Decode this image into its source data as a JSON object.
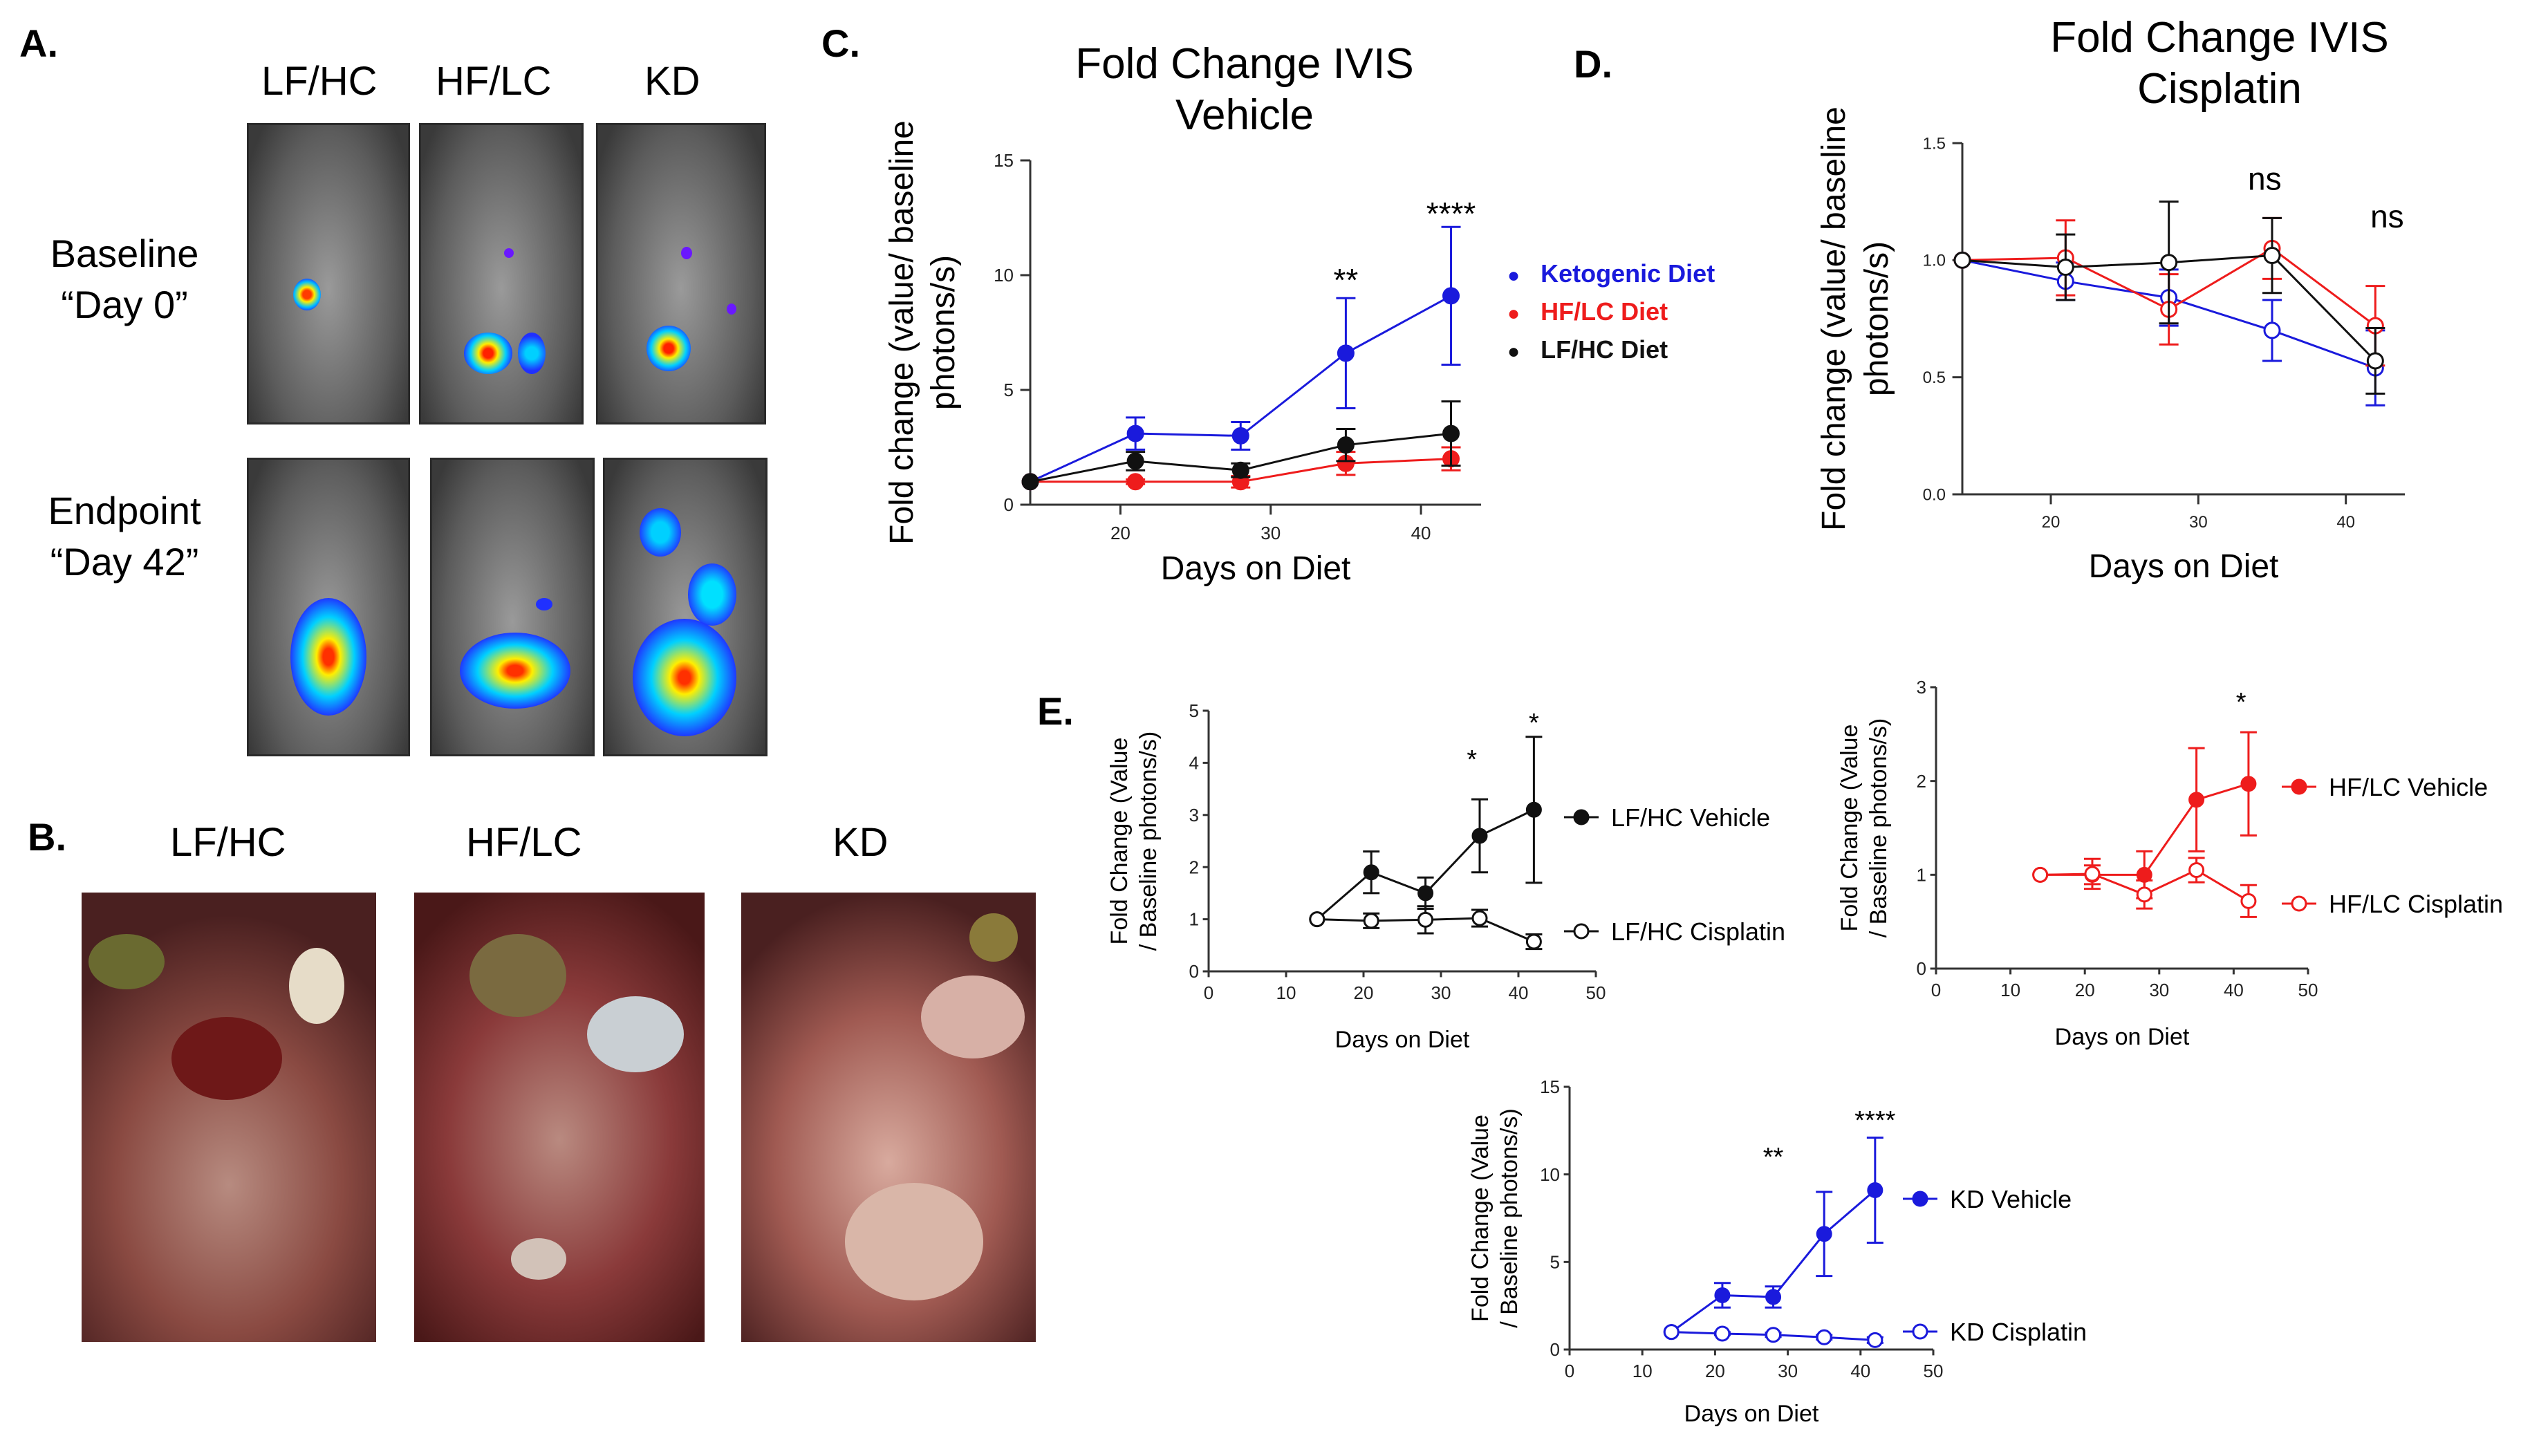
{
  "panels": {
    "a": {
      "label": "A.",
      "columns": [
        "LF/HC",
        "HF/LC",
        "KD"
      ],
      "rows": [
        [
          "Baseline",
          "“Day 0”"
        ],
        [
          "Endpoint",
          "“Day 42”"
        ]
      ]
    },
    "b": {
      "label": "B.",
      "columns": [
        "LF/HC",
        "HF/LC",
        "KD"
      ]
    },
    "c": {
      "label": "C."
    },
    "d": {
      "label": "D."
    },
    "e": {
      "label": "E."
    }
  },
  "colors": {
    "kd": "#1a1adc",
    "hflc": "#ee1c1c",
    "lfhc": "#111111",
    "axis": "#333333"
  },
  "chart_data": [
    {
      "id": "c",
      "type": "line",
      "title_lines": [
        "Fold Change IVIS",
        "Vehicle"
      ],
      "xlabel": "Days on Diet",
      "ylabel_lines": [
        "Fold change (value/ baseline",
        "photons/s)"
      ],
      "xlim": [
        14,
        44
      ],
      "ylim": [
        0,
        15
      ],
      "xticks": [
        20,
        30,
        40
      ],
      "yticks": [
        0,
        5,
        10,
        15
      ],
      "legend": "right",
      "series": [
        {
          "name": "Ketogenic Diet",
          "color": "#1a1adc",
          "x": [
            14,
            21,
            28,
            35,
            42
          ],
          "y": [
            1.0,
            3.1,
            3.0,
            6.6,
            9.1
          ],
          "err": [
            0,
            0.7,
            0.6,
            2.4,
            3.0
          ],
          "marker": "filled"
        },
        {
          "name": "HF/LC Diet",
          "color": "#ee1c1c",
          "x": [
            14,
            21,
            28,
            35,
            42
          ],
          "y": [
            1.0,
            1.0,
            1.0,
            1.8,
            2.0
          ],
          "err": [
            0,
            0.1,
            0.25,
            0.5,
            0.5
          ],
          "marker": "filled"
        },
        {
          "name": "LF/HC Diet",
          "color": "#111111",
          "x": [
            14,
            21,
            28,
            35,
            42
          ],
          "y": [
            1.0,
            1.9,
            1.5,
            2.6,
            3.1
          ],
          "err": [
            0,
            0.4,
            0.3,
            0.7,
            1.4
          ],
          "marker": "filled"
        }
      ],
      "annotations": [
        {
          "text": "**",
          "x": 35,
          "y": 9.3
        },
        {
          "text": "****",
          "x": 42,
          "y": 12.2
        }
      ]
    },
    {
      "id": "d",
      "type": "line",
      "title_lines": [
        "Fold Change IVIS",
        "Cisplatin"
      ],
      "xlabel": "Days on Diet",
      "ylabel_lines": [
        "Fold change (value/ baseline",
        "photons/s)"
      ],
      "xlim": [
        14,
        44
      ],
      "ylim": [
        0,
        1.5
      ],
      "xticks": [
        20,
        30,
        40
      ],
      "yticks": [
        0.0,
        0.5,
        1.0,
        1.5
      ],
      "ytick_labels": [
        "0.0",
        "0.5",
        "1.0",
        "1.5"
      ],
      "series": [
        {
          "name": "Ketogenic Diet",
          "color": "#1a1adc",
          "x": [
            14,
            21,
            28,
            35,
            42
          ],
          "y": [
            1.0,
            0.91,
            0.84,
            0.7,
            0.54
          ],
          "err": [
            0,
            0.08,
            0.12,
            0.13,
            0.16
          ],
          "marker": "open"
        },
        {
          "name": "HF/LC Diet",
          "color": "#ee1c1c",
          "x": [
            14,
            21,
            28,
            35,
            42
          ],
          "y": [
            1.0,
            1.01,
            0.79,
            1.05,
            0.72
          ],
          "err": [
            0,
            0.16,
            0.15,
            0.13,
            0.17
          ],
          "marker": "open"
        },
        {
          "name": "LF/HC Diet",
          "color": "#111111",
          "x": [
            14,
            21,
            28,
            35,
            42
          ],
          "y": [
            1.0,
            0.97,
            0.99,
            1.02,
            0.57
          ],
          "err": [
            0,
            0.14,
            0.26,
            0.16,
            0.14
          ],
          "marker": "open"
        }
      ],
      "annotations": [
        {
          "text": "ns",
          "x": 34.5,
          "y": 1.3
        },
        {
          "text": "ns",
          "x": 42.8,
          "y": 1.14
        }
      ]
    },
    {
      "id": "e1",
      "type": "line",
      "xlabel": "Days on Diet",
      "ylabel_lines": [
        "Fold Change (Value",
        "/ Baseline photons/s)"
      ],
      "xlim": [
        0,
        50
      ],
      "ylim": [
        0,
        5
      ],
      "xticks": [
        0,
        10,
        20,
        30,
        40,
        50
      ],
      "yticks": [
        0,
        1,
        2,
        3,
        4,
        5
      ],
      "series": [
        {
          "name": "LF/HC Vehicle",
          "color": "#111111",
          "x": [
            14,
            21,
            28,
            35,
            42
          ],
          "y": [
            1.0,
            1.9,
            1.5,
            2.6,
            3.1
          ],
          "err": [
            0,
            0.4,
            0.3,
            0.7,
            1.4
          ],
          "marker": "filled"
        },
        {
          "name": "LF/HC Cisplatin",
          "color": "#111111",
          "x": [
            14,
            21,
            28,
            35,
            42
          ],
          "y": [
            1.0,
            0.97,
            0.99,
            1.02,
            0.57
          ],
          "err": [
            0,
            0.14,
            0.26,
            0.16,
            0.14
          ],
          "marker": "open"
        }
      ],
      "annotations": [
        {
          "text": "*",
          "x": 34,
          "y": 3.9
        },
        {
          "text": "*",
          "x": 42,
          "y": 4.6
        }
      ]
    },
    {
      "id": "e2",
      "type": "line",
      "xlabel": "Days on Diet",
      "ylabel_lines": [
        "Fold Change (Value",
        "/ Baseline photons/s)"
      ],
      "xlim": [
        0,
        50
      ],
      "ylim": [
        0,
        3
      ],
      "xticks": [
        0,
        10,
        20,
        30,
        40,
        50
      ],
      "yticks": [
        0,
        1,
        2,
        3
      ],
      "series": [
        {
          "name": "HF/LC Vehicle",
          "color": "#ee1c1c",
          "x": [
            14,
            21,
            28,
            35,
            42
          ],
          "y": [
            1.0,
            1.0,
            1.0,
            1.8,
            1.97
          ],
          "err": [
            0,
            0.1,
            0.25,
            0.55,
            0.55
          ],
          "marker": "filled"
        },
        {
          "name": "HF/LC Cisplatin",
          "color": "#ee1c1c",
          "x": [
            14,
            21,
            28,
            35,
            42
          ],
          "y": [
            1.0,
            1.01,
            0.79,
            1.05,
            0.72
          ],
          "err": [
            0,
            0.16,
            0.15,
            0.13,
            0.17
          ],
          "marker": "open"
        }
      ],
      "annotations": [
        {
          "text": "*",
          "x": 41,
          "y": 2.75
        }
      ]
    },
    {
      "id": "e3",
      "type": "line",
      "xlabel": "Days on  Diet",
      "ylabel_lines": [
        "Fold Change (Value",
        "/ Baseline photons/s)"
      ],
      "xlim": [
        0,
        50
      ],
      "ylim": [
        0,
        15
      ],
      "xticks": [
        0,
        10,
        20,
        30,
        40,
        50
      ],
      "yticks": [
        0,
        5,
        10,
        15
      ],
      "series": [
        {
          "name": "KD Vehicle",
          "color": "#1a1adc",
          "x": [
            14,
            21,
            28,
            35,
            42
          ],
          "y": [
            1.0,
            3.1,
            3.0,
            6.6,
            9.1
          ],
          "err": [
            0,
            0.7,
            0.6,
            2.4,
            3.0
          ],
          "marker": "filled"
        },
        {
          "name": "KD Cisplatin",
          "color": "#1a1adc",
          "x": [
            14,
            21,
            28,
            35,
            42
          ],
          "y": [
            1.0,
            0.91,
            0.84,
            0.7,
            0.54
          ],
          "err": [
            0,
            0.08,
            0.12,
            0.13,
            0.16
          ],
          "marker": "open"
        }
      ],
      "annotations": [
        {
          "text": "**",
          "x": 28,
          "y": 10.5
        },
        {
          "text": "****",
          "x": 42,
          "y": 12.6
        }
      ]
    }
  ]
}
